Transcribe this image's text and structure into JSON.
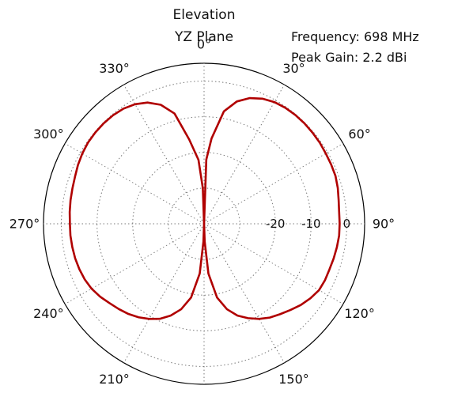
{
  "chart_data": {
    "type": "line",
    "projection": "polar",
    "title": "Elevation",
    "subtitle": "YZ Plane",
    "annotations": [
      "Frequency: 698 MHz",
      "Peak Gain: 2.2 dBi"
    ],
    "theta_zero_location": "top",
    "theta_direction": "clockwise",
    "theta_ticks": [
      0,
      30,
      60,
      90,
      120,
      150,
      180,
      210,
      240,
      270,
      300,
      330
    ],
    "theta_tick_labels": [
      "0°",
      "30°",
      "60°",
      "90°",
      "120°",
      "150°",
      "180°",
      "210°",
      "240°",
      "270°",
      "300°",
      "330°"
    ],
    "r_lim": [
      -40,
      5
    ],
    "r_ticks": [
      -30,
      -20,
      -10,
      0
    ],
    "r_tick_labels": [
      "",
      "-20",
      "-10",
      "0"
    ],
    "r_label_angle": 90,
    "grid": true,
    "series": [
      {
        "color": "#b00000",
        "theta": [
          0,
          2,
          5,
          10,
          15,
          20,
          25,
          30,
          35,
          40,
          45,
          50,
          55,
          60,
          65,
          70,
          75,
          80,
          85,
          90,
          95,
          100,
          105,
          110,
          115,
          120,
          125,
          130,
          135,
          140,
          145,
          150,
          155,
          160,
          165,
          170,
          175,
          178,
          180,
          182,
          185,
          190,
          195,
          200,
          205,
          210,
          215,
          220,
          225,
          230,
          235,
          240,
          245,
          250,
          255,
          260,
          265,
          270,
          275,
          280,
          285,
          290,
          295,
          300,
          305,
          310,
          315,
          320,
          325,
          330,
          335,
          340,
          345,
          350,
          355,
          358,
          360
        ],
        "values": [
          -40,
          -22,
          -16,
          -8,
          -4.5,
          -2.5,
          -1.3,
          -0.6,
          -0.3,
          -0.2,
          -0.2,
          -0.3,
          -0.4,
          -0.6,
          -0.7,
          -0.8,
          -1.2,
          -1.7,
          -2.0,
          -2.0,
          -2.0,
          -2.2,
          -2.4,
          -2.6,
          -2.6,
          -2.8,
          -3.6,
          -4.6,
          -5.8,
          -6.9,
          -7.9,
          -9.2,
          -10.8,
          -12.6,
          -15.2,
          -19.0,
          -26.0,
          -35.0,
          -40,
          -35.0,
          -26.0,
          -19.0,
          -15.2,
          -12.6,
          -10.6,
          -9.2,
          -8.0,
          -7.0,
          -6.2,
          -5.4,
          -4.4,
          -3.6,
          -3.1,
          -2.8,
          -2.6,
          -2.5,
          -2.4,
          -2.4,
          -2.2,
          -2.0,
          -1.8,
          -1.5,
          -1.0,
          -0.6,
          -0.3,
          -0.2,
          -0.2,
          -0.3,
          -0.6,
          -1.3,
          -2.5,
          -4.5,
          -8,
          -16,
          -22,
          -30,
          -40
        ]
      }
    ]
  }
}
